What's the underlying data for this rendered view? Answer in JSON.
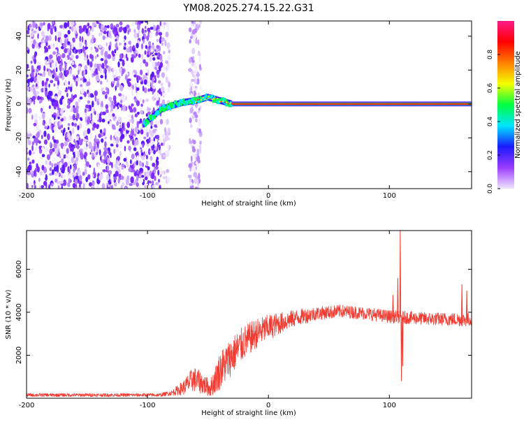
{
  "title": "YM08.2025.274.15.22.G31",
  "chart_data": [
    {
      "type": "heatmap",
      "title": "YM08.2025.274.15.22.G31",
      "xlabel": "Height of straight line (km)",
      "ylabel": "Frequency (Hz)",
      "xlim": [
        -200,
        168
      ],
      "ylim": [
        -50,
        49
      ],
      "xticks": [
        -200,
        -100,
        0,
        100
      ],
      "xtick_labels": [
        "-200",
        "-100",
        "0",
        "100"
      ],
      "yticks": [
        -40,
        -20,
        0,
        20,
        40
      ],
      "ytick_labels": [
        "-40",
        "-20",
        "0",
        "20",
        "40"
      ],
      "colorbar": {
        "label": "Normalized spectral amplitude",
        "range": [
          0,
          1
        ],
        "ticks": [
          0.0,
          0.2,
          0.4,
          0.6,
          0.8
        ],
        "tick_labels": [
          "0.0",
          "0.2",
          "0.4",
          "0.6",
          "0.8"
        ],
        "colors": [
          "#f0e6ff",
          "#9b3cff",
          "#1a1aff",
          "#00e5ff",
          "#00ff40",
          "#f5ff00",
          "#ff8000",
          "#ff0000",
          "#ff1a8c"
        ]
      },
      "noise_region_x": [
        -200,
        -88
      ],
      "sparse_noise_band_x": [
        -65,
        -56
      ],
      "signal_ridge": [
        {
          "x": -103,
          "freq": -12
        },
        {
          "x": -95,
          "freq": -7
        },
        {
          "x": -88,
          "freq": -3
        },
        {
          "x": -80,
          "freq": -1
        },
        {
          "x": -70,
          "freq": 1
        },
        {
          "x": -60,
          "freq": 2
        },
        {
          "x": -50,
          "freq": 4
        },
        {
          "x": -40,
          "freq": 2
        },
        {
          "x": -30,
          "freq": 0
        },
        {
          "x": -15,
          "freq": 0
        },
        {
          "x": 0,
          "freq": 0
        },
        {
          "x": 50,
          "freq": 0
        },
        {
          "x": 100,
          "freq": 0
        },
        {
          "x": 168,
          "freq": 0
        }
      ]
    },
    {
      "type": "line",
      "xlabel": "Height of straight line (km)",
      "ylabel": "SNR (10 * v/v)",
      "xlim": [
        -200,
        168
      ],
      "ylim": [
        0,
        7800
      ],
      "xticks": [
        -200,
        -100,
        0,
        100
      ],
      "xtick_labels": [
        "-200",
        "-100",
        "0",
        "100"
      ],
      "yticks": [
        2000,
        4000,
        6000
      ],
      "ytick_labels": [
        "2000",
        "4000",
        "6000"
      ],
      "series": [
        {
          "name": "SNR",
          "color": "#f03c32",
          "envelope": [
            {
              "x": -200,
              "mean": 150,
              "amp": 80
            },
            {
              "x": -90,
              "mean": 150,
              "amp": 80
            },
            {
              "x": -80,
              "mean": 250,
              "amp": 120
            },
            {
              "x": -70,
              "mean": 500,
              "amp": 350
            },
            {
              "x": -62,
              "mean": 900,
              "amp": 600
            },
            {
              "x": -55,
              "mean": 700,
              "amp": 500
            },
            {
              "x": -48,
              "mean": 450,
              "amp": 400
            },
            {
              "x": -40,
              "mean": 1300,
              "amp": 900
            },
            {
              "x": -30,
              "mean": 2000,
              "amp": 900
            },
            {
              "x": -20,
              "mean": 2600,
              "amp": 800
            },
            {
              "x": -10,
              "mean": 3000,
              "amp": 700
            },
            {
              "x": 0,
              "mean": 3300,
              "amp": 600
            },
            {
              "x": 20,
              "mean": 3700,
              "amp": 400
            },
            {
              "x": 40,
              "mean": 3950,
              "amp": 320
            },
            {
              "x": 60,
              "mean": 4050,
              "amp": 300
            },
            {
              "x": 80,
              "mean": 3950,
              "amp": 300
            },
            {
              "x": 100,
              "mean": 3800,
              "amp": 300
            },
            {
              "x": 130,
              "mean": 3700,
              "amp": 300
            },
            {
              "x": 168,
              "mean": 3650,
              "amp": 320
            }
          ],
          "spikes": [
            {
              "x": 103,
              "value": 4800
            },
            {
              "x": 107,
              "value": 5600
            },
            {
              "x": 109,
              "value": 7800
            },
            {
              "x": 110,
              "value": 800
            },
            {
              "x": 111,
              "value": 1500
            },
            {
              "x": 160,
              "value": 5300
            },
            {
              "x": 164,
              "value": 5000
            }
          ]
        }
      ]
    }
  ]
}
